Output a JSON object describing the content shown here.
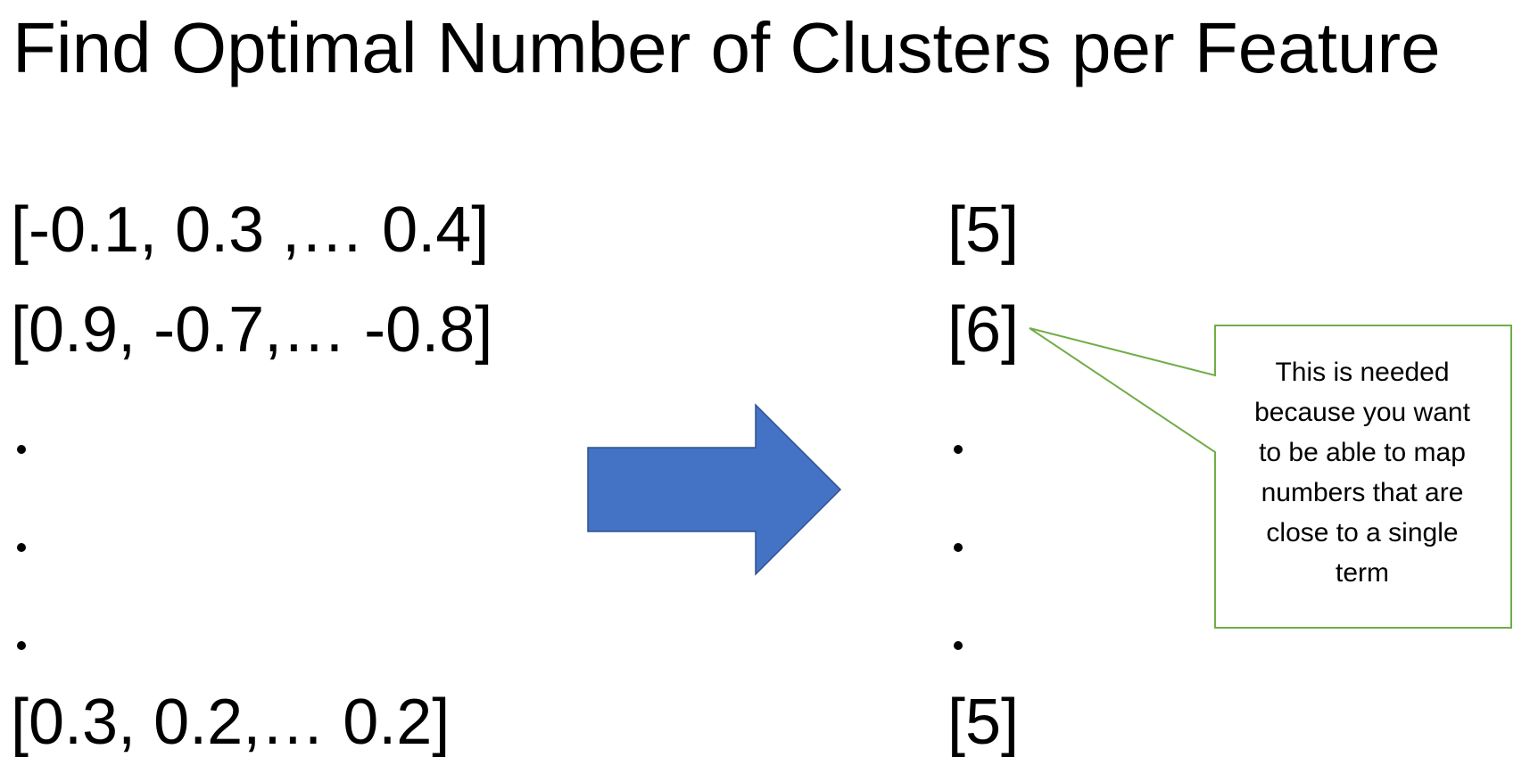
{
  "slide": {
    "title": "Find Optimal Number of Clusters per Feature"
  },
  "left_vectors": {
    "rows": [
      "[-0.1, 0.3 ,… 0.4]",
      "[0.9, -0.7,… -0.8]",
      "[0.3, 0.2,… 0.2]"
    ]
  },
  "right_values": {
    "rows": [
      "[5]",
      "[6]",
      "[5]"
    ]
  },
  "callout": {
    "text": "This is needed\nbecause you want\nto be able to map\nnumbers that are\nclose to a single\nterm"
  },
  "colors": {
    "arrow_fill": "#4472C4",
    "arrow_stroke": "#2F528F",
    "callout_stroke": "#70AD47"
  },
  "icons": {
    "arrow": "right-arrow-icon"
  }
}
